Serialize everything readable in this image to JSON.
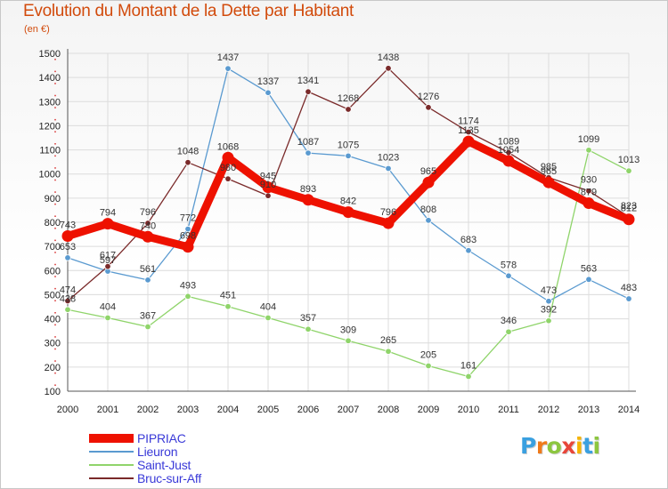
{
  "title": "Evolution du Montant de la Dette par Habitant",
  "subtitle": "(en €)",
  "logo": {
    "text": "Proxiti",
    "letters": [
      "P",
      "r",
      "o",
      "x",
      "i",
      "t",
      "i"
    ],
    "colors": [
      "#3aa0e0",
      "#f07a1a",
      "#8cc63f",
      "#e8463a",
      "#f5b400",
      "#3aa0e0",
      "#8cc63f"
    ]
  },
  "chart_data": {
    "type": "line",
    "title": "Evolution du Montant de la Dette par Habitant",
    "ylabel": "(en €)",
    "xlabel": "",
    "x": [
      "2000",
      "2001",
      "2002",
      "2003",
      "2004",
      "2005",
      "2006",
      "2007",
      "2008",
      "2009",
      "2010",
      "2011",
      "2012",
      "2013",
      "2014"
    ],
    "yticks": [
      "100",
      "200",
      "300",
      "400",
      "500",
      "600",
      "700",
      "800",
      "900",
      "1000",
      "1100",
      "1200",
      "1300",
      "1400",
      "1500"
    ],
    "ylim": [
      100,
      1500
    ],
    "grid": true,
    "legend_position": "bottom-left",
    "series": [
      {
        "name": "PIPRIAC",
        "color": "#ee1100",
        "values": [
          743,
          794,
          740,
          698,
          1068,
          945,
          893,
          842,
          796,
          965,
          1135,
          1054,
          965,
          879,
          812
        ]
      },
      {
        "name": "Lieuron",
        "color": "#5a9ad0",
        "values": [
          653,
          597,
          561,
          772,
          1437,
          1337,
          1087,
          1075,
          1023,
          808,
          683,
          578,
          473,
          563,
          483
        ]
      },
      {
        "name": "Saint-Just",
        "color": "#8fd46a",
        "values": [
          438,
          404,
          367,
          493,
          451,
          404,
          357,
          309,
          265,
          205,
          161,
          346,
          392,
          1099,
          1013
        ]
      },
      {
        "name": "Bruc-sur-Aff",
        "color": "#7a2a2a",
        "values": [
          474,
          617,
          796,
          1048,
          980,
          910,
          1341,
          1268,
          1438,
          1276,
          1174,
          1089,
          985,
          930,
          823
        ]
      }
    ]
  }
}
